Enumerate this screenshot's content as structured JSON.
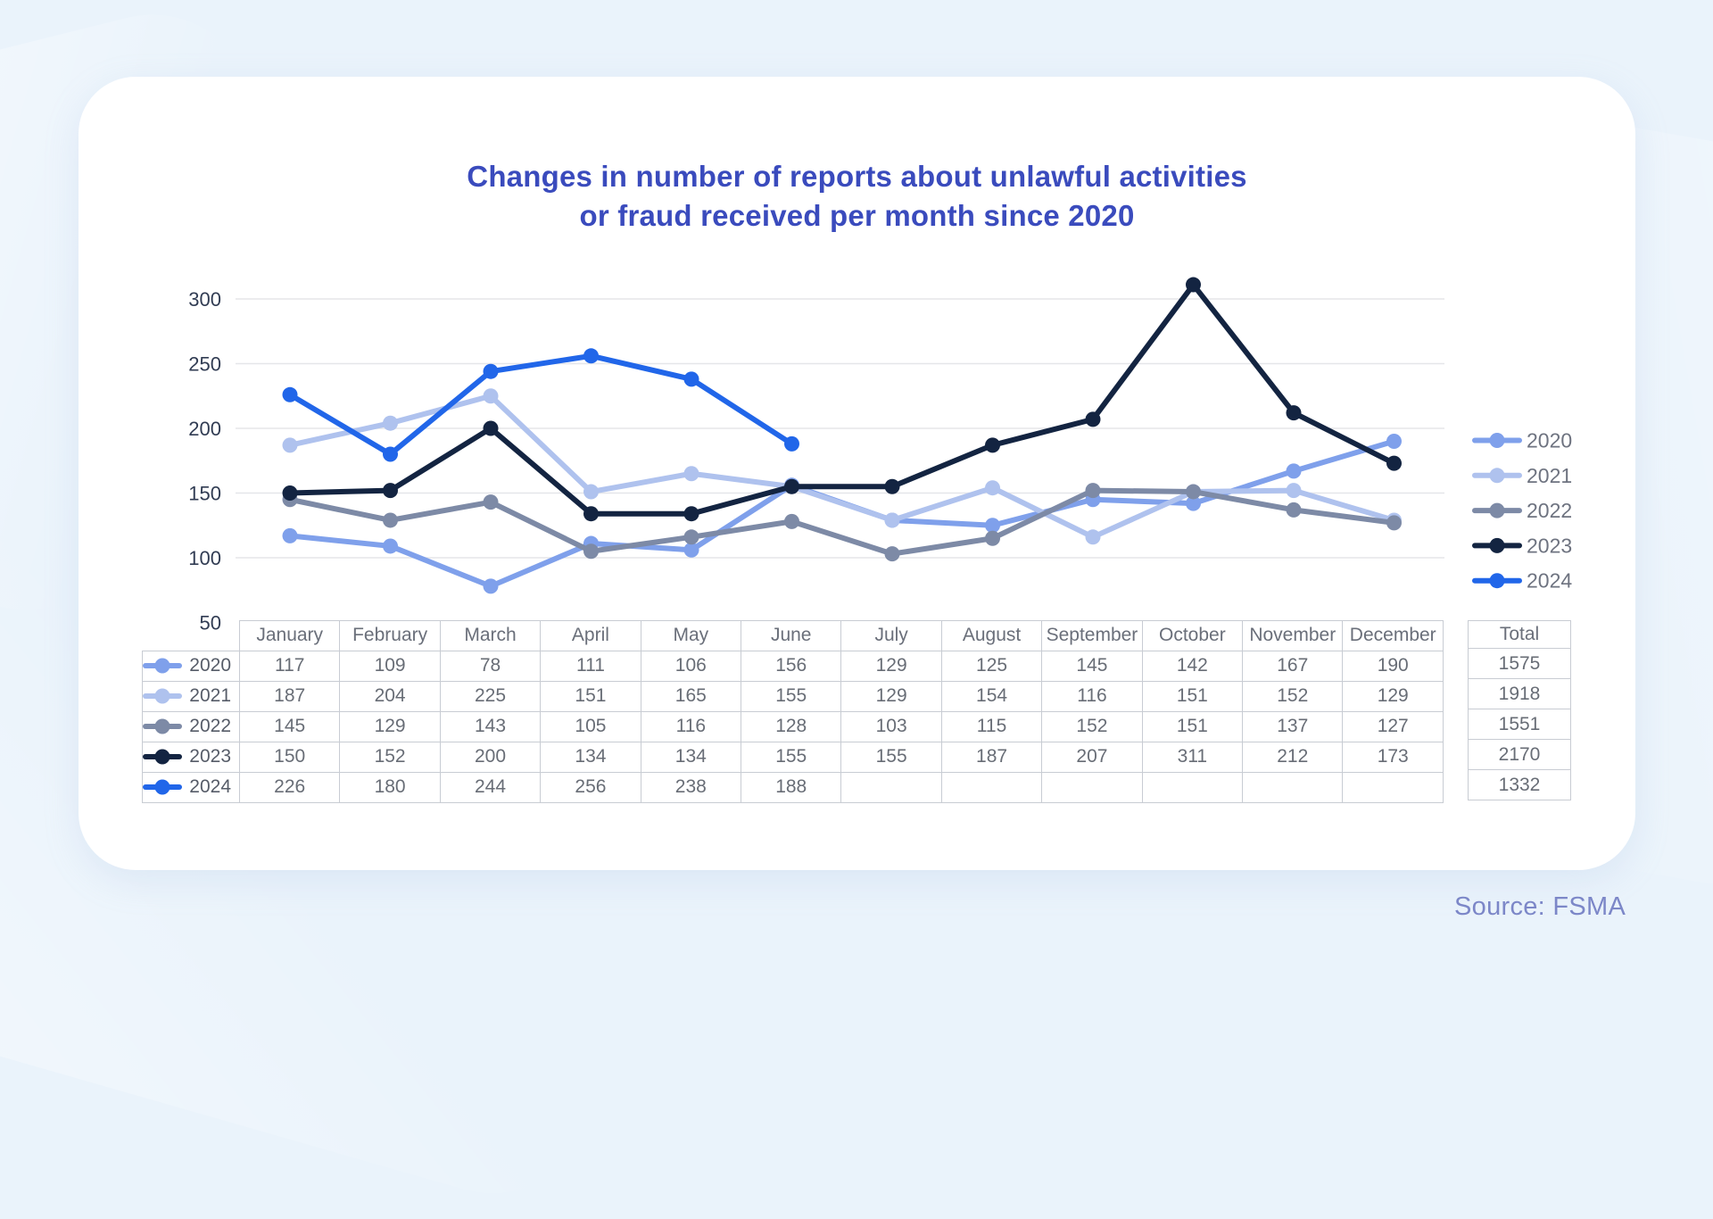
{
  "title": {
    "line1": "Changes in number of reports about unlawful activities",
    "line2": "or fraud received per month since 2020"
  },
  "source_label": "Source: FSMA",
  "colors": {
    "background": "#EAF3FB",
    "card": "#FFFFFF",
    "title_text": "#3A4BBD",
    "source_text": "#7C87C8",
    "grid": "#E5E6E9",
    "axis_text": "#313C53",
    "table_border": "#C8CCD3",
    "table_value_text": "#686D76",
    "table_header_text": "#6A6F7A",
    "legend_text": "#6E7380"
  },
  "chart_data": {
    "type": "line",
    "title": "Changes in number of reports about unlawful activities or fraud received per month since 2020",
    "categories": [
      "January",
      "February",
      "March",
      "April",
      "May",
      "June",
      "July",
      "August",
      "September",
      "October",
      "November",
      "December"
    ],
    "series": [
      {
        "name": "2020",
        "color": "#7FA0EB",
        "values": [
          117,
          109,
          78,
          111,
          106,
          156,
          129,
          125,
          145,
          142,
          167,
          190
        ],
        "total": 1575
      },
      {
        "name": "2021",
        "color": "#AFC2EE",
        "values": [
          187,
          204,
          225,
          151,
          165,
          155,
          129,
          154,
          116,
          151,
          152,
          129
        ],
        "total": 1918
      },
      {
        "name": "2022",
        "color": "#7D8AA6",
        "values": [
          145,
          129,
          143,
          105,
          116,
          128,
          103,
          115,
          152,
          151,
          137,
          127
        ],
        "total": 1551
      },
      {
        "name": "2023",
        "color": "#132441",
        "values": [
          150,
          152,
          200,
          134,
          134,
          155,
          155,
          187,
          207,
          311,
          212,
          173
        ],
        "total": 2170
      },
      {
        "name": "2024",
        "color": "#2166E9",
        "values": [
          226,
          180,
          244,
          256,
          238,
          188,
          null,
          null,
          null,
          null,
          null,
          null
        ],
        "total": 1332
      }
    ],
    "y_axis": {
      "ticks": [
        300,
        250,
        200,
        150,
        100,
        50
      ],
      "min": 50,
      "max": 320
    },
    "grid": true,
    "legend_position": "right",
    "total_header": "Total",
    "x_axis_labels_shown_in_table": true
  }
}
